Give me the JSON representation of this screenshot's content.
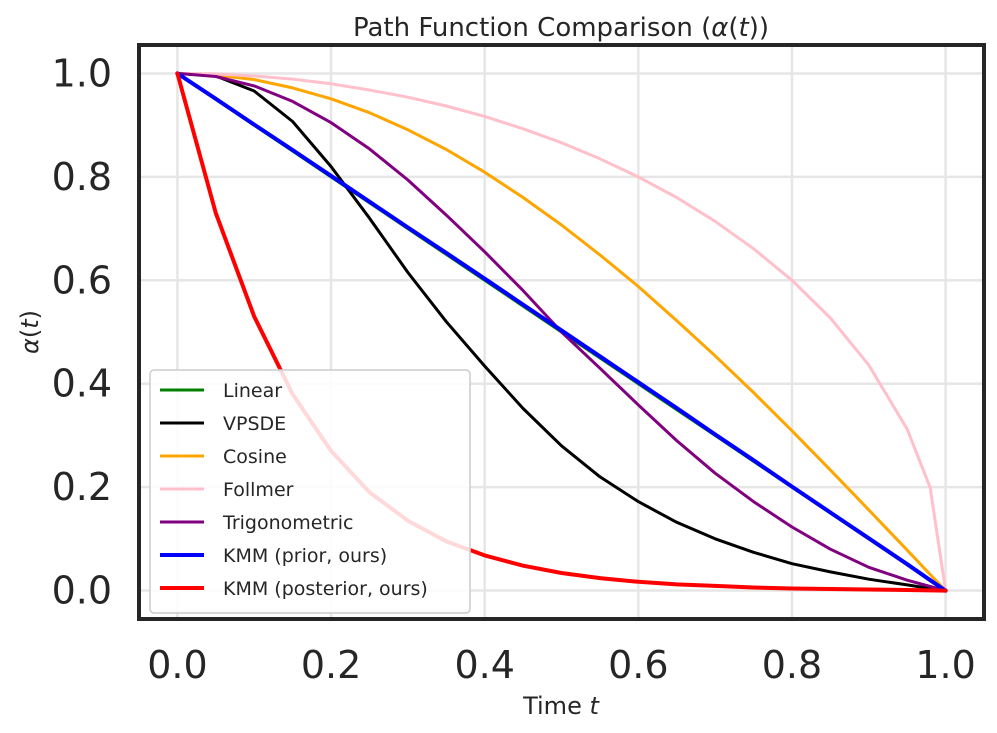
{
  "chart_data": {
    "type": "line",
    "title": "Path Function Comparison (α(t))",
    "xlabel": "Time t",
    "ylabel": "α(t)",
    "xlim": [
      -0.05,
      1.05
    ],
    "ylim": [
      -0.055,
      1.055
    ],
    "xticks": [
      "0.0",
      "0.2",
      "0.4",
      "0.6",
      "0.8",
      "1.0"
    ],
    "yticks": [
      "0.0",
      "0.2",
      "0.4",
      "0.6",
      "0.8",
      "1.0"
    ],
    "grid": true,
    "legend_position": "lower-left",
    "x": [
      0.0,
      0.05,
      0.1,
      0.15,
      0.2,
      0.25,
      0.3,
      0.35,
      0.4,
      0.45,
      0.5,
      0.55,
      0.6,
      0.65,
      0.7,
      0.75,
      0.8,
      0.85,
      0.9,
      0.95,
      0.98,
      1.0
    ],
    "series": [
      {
        "name": "Linear",
        "color": "#008000",
        "width": 3,
        "values": [
          1.0,
          0.95,
          0.9,
          0.85,
          0.8,
          0.75,
          0.7,
          0.65,
          0.6,
          0.55,
          0.5,
          0.45,
          0.4,
          0.35,
          0.3,
          0.25,
          0.2,
          0.15,
          0.1,
          0.05,
          0.02,
          0.0
        ]
      },
      {
        "name": "VPSDE",
        "color": "#000000",
        "width": 3,
        "values": [
          1.0,
          0.995,
          0.966,
          0.907,
          0.82,
          0.72,
          0.615,
          0.52,
          0.434,
          0.352,
          0.28,
          0.22,
          0.172,
          0.132,
          0.1,
          0.074,
          0.052,
          0.036,
          0.022,
          0.011,
          0.004,
          0.0
        ]
      },
      {
        "name": "Cosine",
        "color": "#FFA500",
        "width": 3,
        "values": [
          1.0,
          0.997,
          0.988,
          0.972,
          0.951,
          0.924,
          0.891,
          0.853,
          0.809,
          0.76,
          0.707,
          0.649,
          0.588,
          0.522,
          0.454,
          0.383,
          0.309,
          0.233,
          0.156,
          0.078,
          0.031,
          0.0
        ]
      },
      {
        "name": "Follmer",
        "color": "#FFC0CB",
        "width": 3,
        "values": [
          1.0,
          0.999,
          0.995,
          0.989,
          0.98,
          0.968,
          0.954,
          0.937,
          0.917,
          0.893,
          0.866,
          0.835,
          0.8,
          0.76,
          0.714,
          0.661,
          0.6,
          0.527,
          0.436,
          0.312,
          0.199,
          0.0
        ]
      },
      {
        "name": "Trigonometric",
        "color": "#800080",
        "width": 3,
        "values": [
          1.0,
          0.994,
          0.976,
          0.946,
          0.905,
          0.854,
          0.794,
          0.726,
          0.655,
          0.58,
          0.5,
          0.43,
          0.359,
          0.29,
          0.227,
          0.172,
          0.123,
          0.08,
          0.045,
          0.02,
          0.008,
          0.0
        ]
      },
      {
        "name": "KMM (prior, ours)",
        "color": "#0000FF",
        "width": 4,
        "values": [
          1.0,
          0.951,
          0.901,
          0.852,
          0.802,
          0.752,
          0.702,
          0.653,
          0.603,
          0.553,
          0.503,
          0.453,
          0.403,
          0.353,
          0.302,
          0.252,
          0.201,
          0.151,
          0.101,
          0.051,
          0.02,
          0.0
        ]
      },
      {
        "name": "KMM (posterior, ours)",
        "color": "#FF0000",
        "width": 4,
        "values": [
          1.0,
          0.73,
          0.53,
          0.38,
          0.27,
          0.19,
          0.135,
          0.095,
          0.068,
          0.048,
          0.034,
          0.024,
          0.017,
          0.012,
          0.009,
          0.006,
          0.004,
          0.003,
          0.002,
          0.001,
          0.0004,
          0.0
        ]
      }
    ]
  }
}
